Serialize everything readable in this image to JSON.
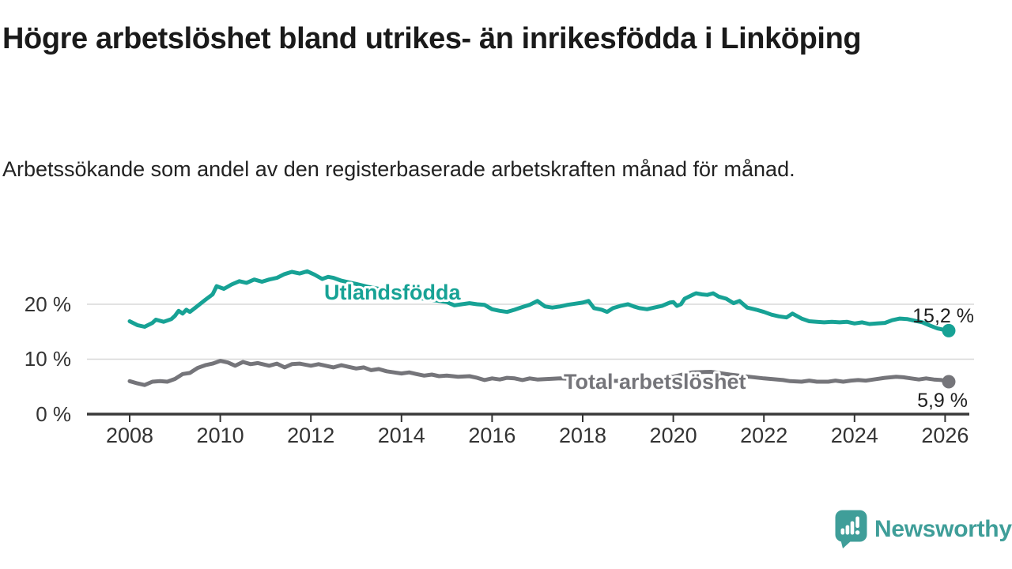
{
  "header": {
    "title": "Högre arbetslöshet bland utrikes- än inrikesfödda i Linköping",
    "subtitle": "Arbetssökande som andel av den registerbaserade arbetskraften månad för månad."
  },
  "footer": {
    "brand": "Newsworthy"
  },
  "colors": {
    "accent_teal": "#17a295",
    "neutral_gray": "#75757a",
    "axis": "#333333",
    "grid": "#d8d8d8",
    "logo_teal": "#3f9e99"
  },
  "chart_data": {
    "type": "line",
    "title": "Högre arbetslöshet bland utrikes- än inrikesfödda i Linköping",
    "subtitle": "Arbetssökande som andel av den registerbaserade arbetskraften månad för månad.",
    "xlabel": "",
    "ylabel": "",
    "x_ticks": [
      "2008",
      "2010",
      "2012",
      "2014",
      "2016",
      "2018",
      "2020",
      "2022",
      "2024",
      "2026"
    ],
    "y_ticks": [
      "0 %",
      "10 %",
      "20 %"
    ],
    "ylim": [
      0,
      27.5
    ],
    "xlim": [
      2007.05,
      2026.55
    ],
    "grid": "horizontal-only",
    "legend": "inline-labels",
    "series": [
      {
        "name": "Utlandsfödda",
        "color": "#17a295",
        "end_label": "15,2 %",
        "end_value": 15.2,
        "points": [
          [
            2008.0,
            16.9
          ],
          [
            2008.17,
            16.2
          ],
          [
            2008.33,
            15.9
          ],
          [
            2008.5,
            16.6
          ],
          [
            2008.58,
            17.2
          ],
          [
            2008.75,
            16.8
          ],
          [
            2008.92,
            17.3
          ],
          [
            2009.0,
            17.9
          ],
          [
            2009.08,
            18.8
          ],
          [
            2009.17,
            18.3
          ],
          [
            2009.25,
            19.0
          ],
          [
            2009.33,
            18.6
          ],
          [
            2009.5,
            19.7
          ],
          [
            2009.67,
            20.8
          ],
          [
            2009.83,
            21.8
          ],
          [
            2009.92,
            23.3
          ],
          [
            2010.08,
            22.8
          ],
          [
            2010.25,
            23.6
          ],
          [
            2010.42,
            24.2
          ],
          [
            2010.58,
            23.9
          ],
          [
            2010.75,
            24.5
          ],
          [
            2010.92,
            24.1
          ],
          [
            2011.08,
            24.5
          ],
          [
            2011.25,
            24.8
          ],
          [
            2011.42,
            25.5
          ],
          [
            2011.58,
            25.9
          ],
          [
            2011.75,
            25.6
          ],
          [
            2011.92,
            26.0
          ],
          [
            2012.08,
            25.4
          ],
          [
            2012.25,
            24.6
          ],
          [
            2012.38,
            25.0
          ],
          [
            2012.5,
            24.8
          ],
          [
            2012.67,
            24.3
          ],
          [
            2012.83,
            24.0
          ],
          [
            2013.0,
            23.7
          ],
          [
            2013.25,
            23.2
          ],
          [
            2013.5,
            22.8
          ],
          [
            2013.75,
            22.3
          ],
          [
            2014.0,
            21.8
          ],
          [
            2014.25,
            21.3
          ],
          [
            2014.5,
            21.0
          ],
          [
            2014.75,
            20.7
          ],
          [
            2015.0,
            20.4
          ],
          [
            2015.17,
            19.8
          ],
          [
            2015.33,
            20.0
          ],
          [
            2015.5,
            20.2
          ],
          [
            2015.67,
            20.0
          ],
          [
            2015.83,
            19.9
          ],
          [
            2016.0,
            19.1
          ],
          [
            2016.17,
            18.8
          ],
          [
            2016.33,
            18.6
          ],
          [
            2016.5,
            19.0
          ],
          [
            2016.67,
            19.5
          ],
          [
            2016.83,
            19.9
          ],
          [
            2017.0,
            20.6
          ],
          [
            2017.17,
            19.6
          ],
          [
            2017.33,
            19.4
          ],
          [
            2017.5,
            19.6
          ],
          [
            2017.67,
            19.9
          ],
          [
            2017.83,
            20.1
          ],
          [
            2018.0,
            20.3
          ],
          [
            2018.13,
            20.6
          ],
          [
            2018.25,
            19.3
          ],
          [
            2018.42,
            19.0
          ],
          [
            2018.54,
            18.6
          ],
          [
            2018.67,
            19.3
          ],
          [
            2018.83,
            19.7
          ],
          [
            2019.0,
            20.0
          ],
          [
            2019.13,
            19.6
          ],
          [
            2019.25,
            19.3
          ],
          [
            2019.42,
            19.1
          ],
          [
            2019.58,
            19.4
          ],
          [
            2019.75,
            19.7
          ],
          [
            2019.92,
            20.3
          ],
          [
            2020.0,
            20.4
          ],
          [
            2020.08,
            19.7
          ],
          [
            2020.17,
            20.0
          ],
          [
            2020.25,
            21.0
          ],
          [
            2020.42,
            21.7
          ],
          [
            2020.5,
            22.0
          ],
          [
            2020.63,
            21.8
          ],
          [
            2020.75,
            21.7
          ],
          [
            2020.88,
            22.0
          ],
          [
            2021.0,
            21.4
          ],
          [
            2021.17,
            21.0
          ],
          [
            2021.33,
            20.2
          ],
          [
            2021.46,
            20.6
          ],
          [
            2021.63,
            19.4
          ],
          [
            2021.83,
            19.0
          ],
          [
            2022.0,
            18.6
          ],
          [
            2022.17,
            18.1
          ],
          [
            2022.33,
            17.8
          ],
          [
            2022.5,
            17.6
          ],
          [
            2022.63,
            18.3
          ],
          [
            2022.83,
            17.4
          ],
          [
            2023.0,
            16.9
          ],
          [
            2023.17,
            16.8
          ],
          [
            2023.33,
            16.7
          ],
          [
            2023.5,
            16.8
          ],
          [
            2023.67,
            16.7
          ],
          [
            2023.83,
            16.8
          ],
          [
            2024.0,
            16.5
          ],
          [
            2024.17,
            16.7
          ],
          [
            2024.33,
            16.4
          ],
          [
            2024.5,
            16.5
          ],
          [
            2024.67,
            16.6
          ],
          [
            2024.83,
            17.1
          ],
          [
            2025.0,
            17.4
          ],
          [
            2025.17,
            17.3
          ],
          [
            2025.33,
            17.0
          ],
          [
            2025.5,
            16.7
          ],
          [
            2025.67,
            16.1
          ],
          [
            2025.83,
            15.6
          ],
          [
            2026.0,
            15.3
          ],
          [
            2026.08,
            15.2
          ]
        ]
      },
      {
        "name": "Total arbetslöshet",
        "color": "#75757a",
        "end_label": "5,9 %",
        "end_value": 5.9,
        "points": [
          [
            2008.0,
            6.0
          ],
          [
            2008.17,
            5.6
          ],
          [
            2008.33,
            5.3
          ],
          [
            2008.5,
            5.9
          ],
          [
            2008.67,
            6.0
          ],
          [
            2008.83,
            5.9
          ],
          [
            2009.0,
            6.4
          ],
          [
            2009.17,
            7.3
          ],
          [
            2009.33,
            7.5
          ],
          [
            2009.5,
            8.4
          ],
          [
            2009.67,
            8.9
          ],
          [
            2009.83,
            9.2
          ],
          [
            2010.0,
            9.7
          ],
          [
            2010.17,
            9.4
          ],
          [
            2010.33,
            8.8
          ],
          [
            2010.5,
            9.5
          ],
          [
            2010.67,
            9.1
          ],
          [
            2010.83,
            9.3
          ],
          [
            2011.08,
            8.8
          ],
          [
            2011.25,
            9.2
          ],
          [
            2011.42,
            8.5
          ],
          [
            2011.58,
            9.1
          ],
          [
            2011.75,
            9.2
          ],
          [
            2012.0,
            8.8
          ],
          [
            2012.17,
            9.1
          ],
          [
            2012.33,
            8.8
          ],
          [
            2012.5,
            8.5
          ],
          [
            2012.67,
            8.9
          ],
          [
            2012.83,
            8.6
          ],
          [
            2013.0,
            8.3
          ],
          [
            2013.17,
            8.5
          ],
          [
            2013.33,
            8.0
          ],
          [
            2013.5,
            8.2
          ],
          [
            2013.67,
            7.8
          ],
          [
            2013.83,
            7.6
          ],
          [
            2014.0,
            7.4
          ],
          [
            2014.17,
            7.6
          ],
          [
            2014.33,
            7.3
          ],
          [
            2014.5,
            7.0
          ],
          [
            2014.67,
            7.2
          ],
          [
            2014.83,
            6.9
          ],
          [
            2015.0,
            7.0
          ],
          [
            2015.25,
            6.8
          ],
          [
            2015.5,
            6.9
          ],
          [
            2015.67,
            6.6
          ],
          [
            2015.83,
            6.2
          ],
          [
            2016.0,
            6.5
          ],
          [
            2016.17,
            6.3
          ],
          [
            2016.33,
            6.6
          ],
          [
            2016.5,
            6.5
          ],
          [
            2016.67,
            6.2
          ],
          [
            2016.83,
            6.5
          ],
          [
            2017.0,
            6.3
          ],
          [
            2017.25,
            6.4
          ],
          [
            2017.5,
            6.5
          ],
          [
            2017.75,
            6.4
          ],
          [
            2018.0,
            6.2
          ],
          [
            2018.5,
            6.0
          ],
          [
            2019.0,
            6.1
          ],
          [
            2019.5,
            6.2
          ],
          [
            2020.0,
            6.8
          ],
          [
            2020.42,
            7.6
          ],
          [
            2020.83,
            7.7
          ],
          [
            2021.25,
            7.2
          ],
          [
            2021.67,
            6.8
          ],
          [
            2022.0,
            6.5
          ],
          [
            2022.42,
            6.2
          ],
          [
            2022.58,
            6.0
          ],
          [
            2022.83,
            5.9
          ],
          [
            2023.0,
            6.1
          ],
          [
            2023.17,
            5.9
          ],
          [
            2023.42,
            5.9
          ],
          [
            2023.58,
            6.1
          ],
          [
            2023.75,
            5.9
          ],
          [
            2023.92,
            6.1
          ],
          [
            2024.08,
            6.2
          ],
          [
            2024.25,
            6.1
          ],
          [
            2024.42,
            6.3
          ],
          [
            2024.67,
            6.6
          ],
          [
            2024.92,
            6.8
          ],
          [
            2025.08,
            6.7
          ],
          [
            2025.25,
            6.5
          ],
          [
            2025.42,
            6.3
          ],
          [
            2025.58,
            6.5
          ],
          [
            2025.75,
            6.3
          ],
          [
            2025.92,
            6.2
          ],
          [
            2026.08,
            5.9
          ]
        ]
      }
    ]
  }
}
